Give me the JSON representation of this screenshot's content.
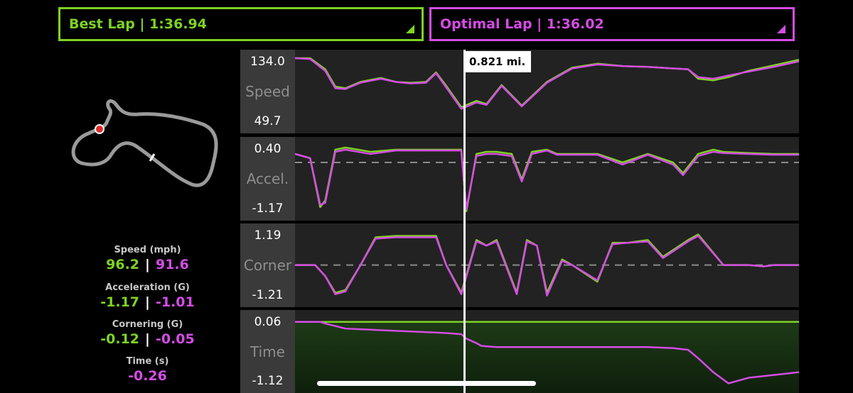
{
  "laps": {
    "best": {
      "label": "Best Lap | 1:36.94"
    },
    "optimal": {
      "label": "Optimal Lap | 1:36.02"
    }
  },
  "cursor": {
    "distance": "0.821 mi."
  },
  "stats": [
    {
      "title": "Speed (mph)",
      "best": "96.2",
      "optimal": "91.6"
    },
    {
      "title": "Acceleration (G)",
      "best": "-1.17",
      "optimal": "-1.01"
    },
    {
      "title": "Cornering (G)",
      "best": "-0.12",
      "optimal": "-0.05"
    }
  ],
  "time_stat": {
    "title": "Time (s)",
    "value": "-0.26"
  },
  "colors": {
    "best": "#7ed321",
    "optimal": "#d54ce6"
  },
  "charts": {
    "speed": {
      "name": "Speed",
      "max": "134.0",
      "min": "49.7"
    },
    "accel": {
      "name": "Accel.",
      "max": "0.40",
      "min": "-1.17"
    },
    "corner": {
      "name": "Corner",
      "max": "1.19",
      "min": "-1.21"
    },
    "time": {
      "name": "Time",
      "max": "0.06",
      "min": "-1.12"
    }
  },
  "chart_data": [
    {
      "type": "line",
      "ylabel": "Speed",
      "ylim": [
        49.7,
        134.0
      ],
      "x": [
        0,
        0.03,
        0.06,
        0.08,
        0.1,
        0.13,
        0.17,
        0.2,
        0.23,
        0.26,
        0.28,
        0.3,
        0.33,
        0.36,
        0.38,
        0.41,
        0.45,
        0.5,
        0.55,
        0.6,
        0.65,
        0.7,
        0.75,
        0.78,
        0.8,
        0.83,
        0.86,
        0.9,
        0.95,
        1.0
      ],
      "series": [
        {
          "values": [
            134,
            134,
            120,
            98,
            96,
            104,
            109,
            104,
            103,
            104,
            116,
            99,
            72,
            80,
            76,
            100,
            74,
            104,
            122,
            127,
            124,
            123,
            121,
            120,
            108,
            106,
            110,
            118,
            125,
            132
          ]
        },
        {
          "values": [
            134,
            133,
            118,
            96,
            95,
            103,
            108,
            104,
            102,
            103,
            115,
            97,
            70,
            78,
            75,
            99,
            73,
            103,
            121,
            126,
            124,
            123,
            121,
            120,
            110,
            108,
            112,
            117,
            123,
            130
          ]
        }
      ]
    },
    {
      "type": "line",
      "ylabel": "Accel.",
      "ylim": [
        -1.17,
        0.4
      ],
      "x": [
        0,
        0.03,
        0.05,
        0.06,
        0.08,
        0.1,
        0.15,
        0.2,
        0.25,
        0.3,
        0.33,
        0.34,
        0.36,
        0.38,
        0.4,
        0.43,
        0.45,
        0.47,
        0.5,
        0.52,
        0.55,
        0.6,
        0.65,
        0.7,
        0.75,
        0.77,
        0.8,
        0.83,
        0.85,
        0.9,
        0.95,
        1.0
      ],
      "series": [
        {
          "values": [
            0.2,
            0.1,
            -1.05,
            -0.9,
            0.3,
            0.35,
            0.25,
            0.3,
            0.3,
            0.3,
            0.3,
            -1.15,
            0.2,
            0.25,
            0.25,
            0.2,
            -0.4,
            0.25,
            0.3,
            0.2,
            0.2,
            0.2,
            0.0,
            0.2,
            0.0,
            -0.25,
            0.2,
            0.3,
            0.25,
            0.22,
            0.2,
            0.2
          ]
        },
        {
          "values": [
            0.2,
            0.1,
            -1.0,
            -0.95,
            0.25,
            0.3,
            0.2,
            0.28,
            0.28,
            0.28,
            0.28,
            -1.1,
            0.15,
            0.2,
            0.2,
            0.15,
            -0.45,
            0.2,
            0.28,
            0.18,
            0.18,
            0.18,
            -0.05,
            0.18,
            -0.05,
            -0.3,
            0.15,
            0.25,
            0.22,
            0.2,
            0.18,
            0.18
          ]
        }
      ]
    },
    {
      "type": "line",
      "ylabel": "Corner",
      "ylim": [
        -1.21,
        1.19
      ],
      "x": [
        0,
        0.04,
        0.06,
        0.08,
        0.1,
        0.13,
        0.16,
        0.2,
        0.25,
        0.28,
        0.3,
        0.33,
        0.36,
        0.38,
        0.4,
        0.44,
        0.46,
        0.48,
        0.5,
        0.53,
        0.55,
        0.6,
        0.63,
        0.66,
        0.7,
        0.73,
        0.78,
        0.8,
        0.85,
        0.9,
        0.93,
        0.95,
        1.0
      ],
      "series": [
        {
          "values": [
            0,
            0,
            -0.4,
            -1.0,
            -0.9,
            0.0,
            1.0,
            1.05,
            1.05,
            1.05,
            0.0,
            -1.0,
            0.9,
            0.7,
            0.9,
            -1.0,
            0.9,
            0.7,
            -1.0,
            0.2,
            0.0,
            -0.6,
            0.8,
            0.8,
            0.9,
            0.3,
            0.9,
            1.1,
            0.0,
            0.0,
            -0.05,
            0.0,
            0.0
          ]
        },
        {
          "values": [
            0,
            0,
            -0.4,
            -1.05,
            -0.95,
            0.0,
            0.95,
            1.0,
            1.0,
            1.0,
            0.0,
            -1.05,
            0.85,
            0.7,
            0.85,
            -1.05,
            0.85,
            0.7,
            -1.1,
            0.15,
            0.0,
            -0.55,
            0.75,
            0.8,
            0.85,
            0.25,
            0.85,
            1.05,
            0.0,
            0.0,
            -0.05,
            0.0,
            0.0
          ]
        }
      ]
    },
    {
      "type": "line",
      "ylabel": "Time",
      "ylim": [
        -1.12,
        0.06
      ],
      "x": [
        0,
        0.05,
        0.06,
        0.1,
        0.15,
        0.2,
        0.25,
        0.3,
        0.33,
        0.34,
        0.36,
        0.37,
        0.4,
        0.5,
        0.6,
        0.7,
        0.75,
        0.78,
        0.8,
        0.83,
        0.86,
        0.88,
        0.9,
        0.95,
        1.0
      ],
      "series": [
        {
          "values": [
            0.0,
            0.0,
            0.0,
            0.0,
            0.0,
            0.0,
            0.0,
            0.0,
            0.0,
            0.0,
            0.0,
            0.0,
            0.0,
            0.0,
            0.0,
            0.0,
            0.0,
            0.0,
            0.0,
            0.0,
            0.0,
            0.0,
            0.0,
            0.0,
            0.0
          ]
        },
        {
          "values": [
            0.0,
            0.0,
            -0.03,
            -0.12,
            -0.14,
            -0.16,
            -0.18,
            -0.2,
            -0.22,
            -0.3,
            -0.38,
            -0.43,
            -0.45,
            -0.45,
            -0.45,
            -0.45,
            -0.47,
            -0.5,
            -0.65,
            -0.9,
            -1.1,
            -1.05,
            -1.0,
            -0.95,
            -0.9
          ]
        }
      ]
    }
  ]
}
